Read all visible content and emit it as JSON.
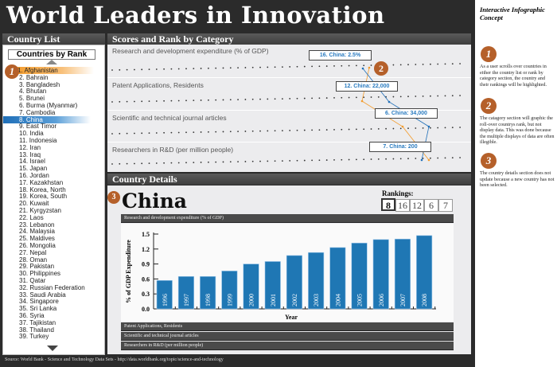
{
  "title": "World Leaders in Innovation",
  "country_list": {
    "header": "Country List",
    "sort_label": "Countries by Rank",
    "items": [
      "1. Afghanistan",
      "2. Bahrain",
      "3. Bangladesh",
      "4. Bhutan",
      "5. Brunei",
      "6. Burma (Myanmar)",
      "7. Cambodia",
      "8. China",
      "9. East Timor",
      "10. India",
      "11. Indonesia",
      "12. Iran",
      "13. Iraq",
      "14. Israel",
      "15. Japan",
      "16. Jordan",
      "17. Kazakhstan",
      "18. Korea, North",
      "19. Korea, South",
      "20. Kuwait",
      "21. Kyrgyzstan",
      "22. Laos",
      "23. Lebanon",
      "24. Malaysia",
      "25. Maldives",
      "26. Mongolia",
      "27. Nepal",
      "28. Oman",
      "29. Pakistan",
      "30. Philippines",
      "31. Qatar",
      "32. Russian Federation",
      "33. Saudi Arabia",
      "34. Singapore",
      "35. Sri Lanka",
      "36. Syria",
      "37. Tajikistan",
      "38. Thailand",
      "39. Turkey"
    ],
    "hover_index": 0,
    "selected_index": 7
  },
  "scores": {
    "header": "Scores and Rank by Category",
    "rows": [
      {
        "label": "Research and development expenditure (% of GDP)",
        "callout": "16. China: 2.5%"
      },
      {
        "label": "Patent Applications, Residents",
        "callout": "12. China: 22,000"
      },
      {
        "label": "Scientific and technical journal articles",
        "callout": "6. China: 34,000"
      },
      {
        "label": "Researchers in R&D (per million people)",
        "callout": "7. China: 200"
      }
    ]
  },
  "details": {
    "header": "Country Details",
    "country": "China",
    "rankings_label": "Rankings:",
    "rankings": [
      "8",
      "16",
      "12",
      "6",
      "7"
    ],
    "sections": [
      "Research and development expenditure (% of GDP)",
      "Patent Applications, Residents",
      "Scientific and technical journal articles",
      "Researchers in R&D (per million people)"
    ]
  },
  "chart_data": {
    "type": "bar",
    "categories": [
      "1996",
      "1997",
      "1998",
      "1999",
      "2000",
      "2001",
      "2002",
      "2003",
      "2004",
      "2005",
      "2006",
      "2007",
      "2008"
    ],
    "values": [
      0.57,
      0.65,
      0.65,
      0.76,
      0.9,
      0.95,
      1.07,
      1.13,
      1.23,
      1.32,
      1.39,
      1.4,
      1.47
    ],
    "xlabel": "Year",
    "ylabel": "% of GDP Expenditure",
    "ylim": [
      0,
      1.5
    ],
    "yticks": [
      "0.0",
      "0.3",
      "0.6",
      "0.9",
      "1.2",
      "1.5"
    ],
    "bar_color": "#1f77b4"
  },
  "footer": "Source: World Bank - Science and Technology Data Sets - http://data.worldbank.org/topic/science-and-technology",
  "notes": {
    "title": "Interactive Infographic Concept",
    "items": [
      {
        "num": "1",
        "text": "As a user scrolls over countries in either the country list or rank by category section, the country and their rankings will be highlighted."
      },
      {
        "num": "2",
        "text": "The catagory section will graphic the roll-over countrys rank, but not display data. This was done because the multiple displays of data are often illegible."
      },
      {
        "num": "3",
        "text": "The country details section does not update because a new country has not been selected."
      }
    ]
  },
  "colors": {
    "highlight_orange": "#f39c2d",
    "highlight_blue": "#1f6fb8",
    "badge": "#b5602a"
  }
}
